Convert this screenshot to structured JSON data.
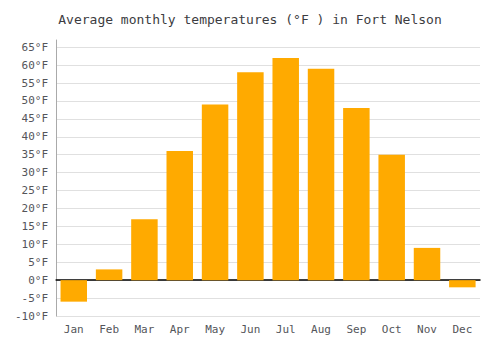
{
  "chart_data": {
    "type": "bar",
    "title": "Average monthly temperatures (°F ) in Fort Nelson",
    "categories": [
      "Jan",
      "Feb",
      "Mar",
      "Apr",
      "May",
      "Jun",
      "Jul",
      "Aug",
      "Sep",
      "Oct",
      "Nov",
      "Dec"
    ],
    "values": [
      -6,
      3,
      17,
      36,
      49,
      58,
      62,
      59,
      48,
      35,
      9,
      -2
    ],
    "color": "#FFAA00",
    "ylim": [
      -10,
      67
    ],
    "yticks": [
      {
        "value": -10,
        "label": "-10°F"
      },
      {
        "value": -5,
        "label": "-5°F"
      },
      {
        "value": 0,
        "label": "0°F"
      },
      {
        "value": 5,
        "label": "5°F"
      },
      {
        "value": 10,
        "label": "10°F"
      },
      {
        "value": 15,
        "label": "15°F"
      },
      {
        "value": 20,
        "label": "20°F"
      },
      {
        "value": 25,
        "label": "25°F"
      },
      {
        "value": 30,
        "label": "30°F"
      },
      {
        "value": 35,
        "label": "35°F"
      },
      {
        "value": 40,
        "label": "40°F"
      },
      {
        "value": 45,
        "label": "45°F"
      },
      {
        "value": 50,
        "label": "50°F"
      },
      {
        "value": 55,
        "label": "55°F"
      },
      {
        "value": 60,
        "label": "60°F"
      },
      {
        "value": 65,
        "label": "65°F"
      }
    ],
    "grid": true
  }
}
